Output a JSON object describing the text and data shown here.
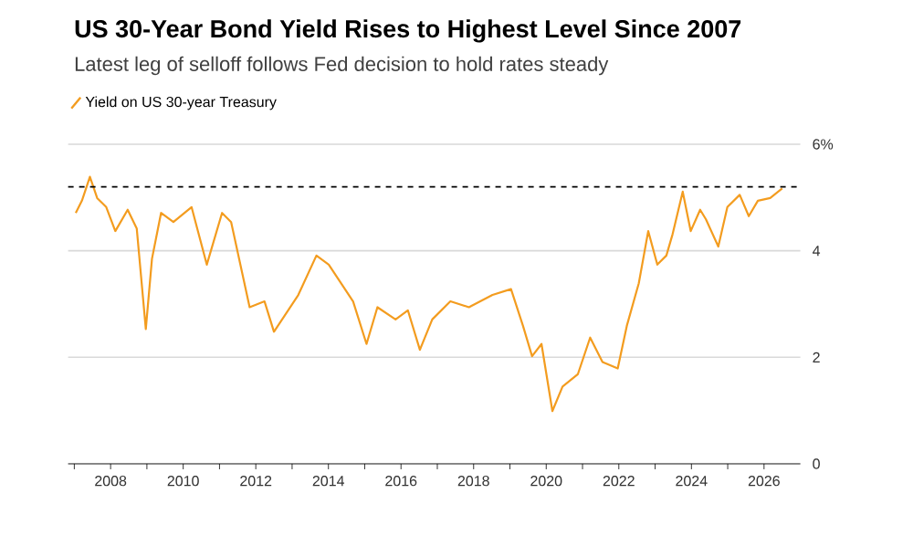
{
  "chart_data": {
    "type": "line",
    "title": "US 30-Year Bond Yield Rises to Highest Level Since 2007",
    "subtitle": "Latest leg of selloff follows Fed decision to hold rates steady",
    "xlim": [
      2006.83,
      2027.0
    ],
    "xticks": [
      {
        "value": 2007,
        "label": null
      },
      2008,
      {
        "value": 2009,
        "label": null
      },
      2010,
      {
        "value": 2011,
        "label": null
      },
      2012,
      {
        "value": 2013,
        "label": null
      },
      2014,
      {
        "value": 2015,
        "label": null
      },
      2016,
      {
        "value": 2017,
        "label": null
      },
      2018,
      {
        "value": 2019,
        "label": null
      },
      2020,
      {
        "value": 2021,
        "label": null
      },
      2022,
      {
        "value": 2023,
        "label": null
      },
      2024,
      {
        "value": 2025,
        "label": null
      },
      2026
    ],
    "ylim": [
      0,
      6
    ],
    "yticks": [
      0,
      2,
      4,
      {
        "value": 6,
        "label": "6%"
      }
    ],
    "grid": "y",
    "legend": "top left",
    "ref_lines": [
      {
        "axis": "y",
        "value": 5.2,
        "color": "#000000",
        "line_style": "dashed"
      }
    ],
    "series": [
      {
        "name": "Yield on US 30-year Treasury",
        "color": "#f39c1f",
        "x": [
          2007.04,
          2007.21,
          2007.43,
          2007.63,
          2007.88,
          2008.13,
          2008.47,
          2008.72,
          2008.97,
          2009.14,
          2009.39,
          2009.73,
          2010.23,
          2010.65,
          2011.07,
          2011.32,
          2011.83,
          2012.24,
          2012.5,
          2013.17,
          2013.67,
          2014.01,
          2014.68,
          2015.05,
          2015.35,
          2015.85,
          2016.19,
          2016.52,
          2016.86,
          2017.36,
          2017.87,
          2018.52,
          2019.03,
          2019.36,
          2019.61,
          2019.87,
          2020.17,
          2020.45,
          2020.87,
          2021.21,
          2021.55,
          2021.97,
          2022.22,
          2022.55,
          2022.81,
          2023.06,
          2023.31,
          2023.48,
          2023.76,
          2023.98,
          2024.24,
          2024.4,
          2024.74,
          2024.99,
          2025.33,
          2025.58,
          2025.83,
          2026.17,
          2026.5
        ],
        "values": [
          4.71,
          4.94,
          5.39,
          4.99,
          4.82,
          4.37,
          4.77,
          4.42,
          2.53,
          3.85,
          4.71,
          4.54,
          4.82,
          3.74,
          4.71,
          4.54,
          2.94,
          3.05,
          2.48,
          3.17,
          3.91,
          3.74,
          3.05,
          2.25,
          2.94,
          2.71,
          2.88,
          2.14,
          2.71,
          3.05,
          2.94,
          3.17,
          3.28,
          2.59,
          2.02,
          2.25,
          0.99,
          1.45,
          1.68,
          2.37,
          1.91,
          1.79,
          2.59,
          3.39,
          4.37,
          3.74,
          3.91,
          4.31,
          5.11,
          4.37,
          4.77,
          4.59,
          4.08,
          4.82,
          5.05,
          4.65,
          4.94,
          4.99,
          5.17
        ]
      }
    ]
  }
}
